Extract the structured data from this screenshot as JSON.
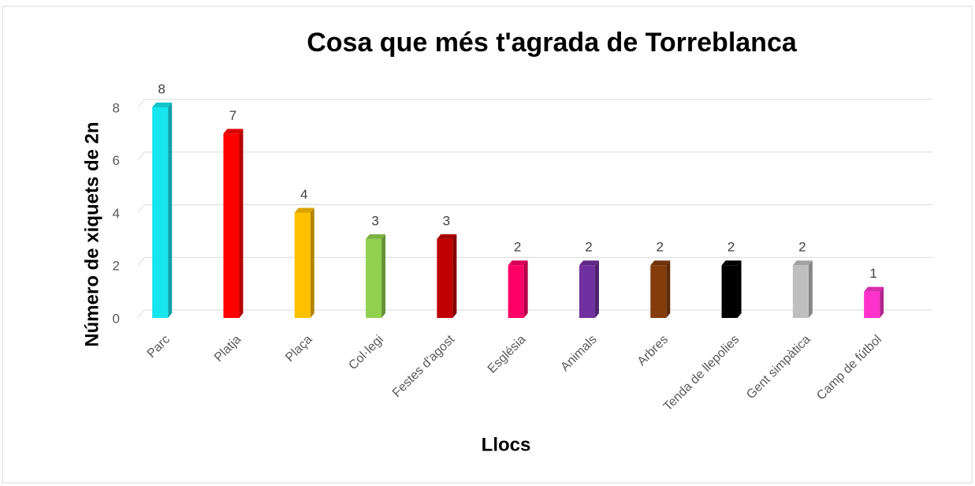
{
  "chart_data": {
    "type": "bar",
    "title": "Cosa que més t'agrada de Torreblanca",
    "x_label": "Llocs",
    "y_label": "Número de xiquets de 2n",
    "categories": [
      "Parc",
      "Platja",
      "Plaça",
      "Col·legi",
      "Festes d'agost",
      "Església",
      "Animals",
      "Arbres",
      "Tenda de llepolies",
      "Gent simpàtica",
      "Camp de fútbol"
    ],
    "values": [
      8,
      7,
      4,
      3,
      3,
      2,
      2,
      2,
      2,
      2,
      1
    ],
    "colors": [
      "#18e6ee",
      "#ff0000",
      "#ffc000",
      "#92d050",
      "#c00000",
      "#ff0066",
      "#7030a0",
      "#843c0c",
      "#000000",
      "#bfbfbf",
      "#ff33cc"
    ],
    "ylim": [
      0,
      8
    ],
    "yticks": [
      0,
      2,
      4,
      6,
      8
    ],
    "grid": true
  }
}
